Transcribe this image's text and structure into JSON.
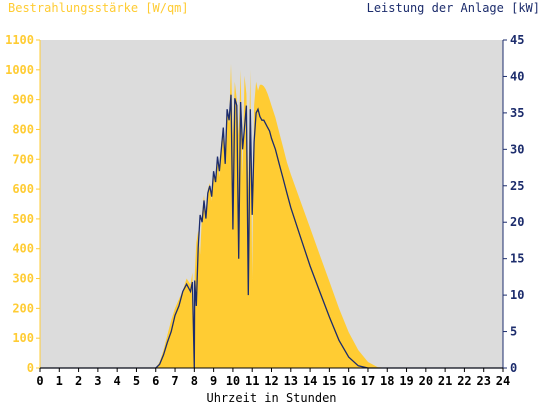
{
  "chart_data": {
    "type": "area",
    "left_axis_title": "Bestrahlungsstärke [W/qm]",
    "right_axis_title": "Leistung der Anlage [kW]",
    "xlabel": "Uhrzeit in Stunden",
    "x_ticks": [
      "0",
      "1",
      "2",
      "3",
      "4",
      "5",
      "6",
      "7",
      "8",
      "9",
      "10",
      "11",
      "12",
      "13",
      "14",
      "15",
      "16",
      "17",
      "18",
      "19",
      "20",
      "21",
      "22",
      "23",
      "24"
    ],
    "y_left_ticks": [
      "0",
      "100",
      "200",
      "300",
      "400",
      "500",
      "600",
      "700",
      "800",
      "900",
      "1000",
      "1100"
    ],
    "y_right_ticks": [
      "0",
      "5",
      "10",
      "15",
      "20",
      "25",
      "30",
      "35",
      "40",
      "45"
    ],
    "xlim": [
      0,
      24
    ],
    "ylim_left": [
      0,
      1100
    ],
    "ylim_right": [
      0,
      45
    ],
    "grid": false,
    "colors": {
      "plot_bg": "#dcdcdc",
      "irradiance": "#ffcc33",
      "power": "#1c2c6c",
      "left_axis": "#ffcc33",
      "right_axis": "#1c2c6c",
      "xlabel": "#000000"
    },
    "series": [
      {
        "axis": "left",
        "x": [
          0,
          6.0,
          6.2,
          6.4,
          6.6,
          6.8,
          7.0,
          7.2,
          7.4,
          7.6,
          7.8,
          7.9,
          8.0,
          8.02,
          8.1,
          8.2,
          8.3,
          8.4,
          8.5,
          8.6,
          8.7,
          8.8,
          8.9,
          9.0,
          9.1,
          9.2,
          9.3,
          9.4,
          9.5,
          9.6,
          9.7,
          9.8,
          9.9,
          10.0,
          10.1,
          10.2,
          10.3,
          10.4,
          10.5,
          10.6,
          10.7,
          10.8,
          10.9,
          11.0,
          11.1,
          11.2,
          11.3,
          11.4,
          11.5,
          11.6,
          11.7,
          11.8,
          11.9,
          12.0,
          12.2,
          12.4,
          12.6,
          12.8,
          13.0,
          13.5,
          14.0,
          14.5,
          15.0,
          15.5,
          16.0,
          16.5,
          17.0,
          17.5,
          18.0,
          18.3,
          18.6,
          18.8,
          24
        ],
        "values": [
          0,
          0,
          20,
          60,
          110,
          160,
          200,
          230,
          260,
          300,
          280,
          320,
          0,
          310,
          420,
          460,
          380,
          520,
          580,
          500,
          600,
          620,
          560,
          660,
          620,
          700,
          640,
          760,
          800,
          700,
          860,
          820,
          1020,
          780,
          960,
          900,
          780,
          1000,
          640,
          980,
          920,
          600,
          1000,
          300,
          880,
          960,
          930,
          950,
          950,
          945,
          935,
          920,
          900,
          880,
          840,
          790,
          740,
          690,
          650,
          560,
          470,
          380,
          290,
          200,
          120,
          60,
          20,
          3,
          0,
          0,
          0,
          0,
          0
        ],
        "name": ""
      },
      {
        "axis": "right",
        "x": [
          0,
          6.0,
          6.2,
          6.4,
          6.6,
          6.8,
          7.0,
          7.2,
          7.4,
          7.6,
          7.8,
          7.9,
          8.0,
          8.02,
          8.1,
          8.2,
          8.3,
          8.4,
          8.5,
          8.6,
          8.7,
          8.8,
          8.9,
          9.0,
          9.1,
          9.2,
          9.3,
          9.4,
          9.5,
          9.6,
          9.7,
          9.8,
          9.9,
          10.0,
          10.1,
          10.2,
          10.3,
          10.4,
          10.5,
          10.6,
          10.7,
          10.8,
          10.9,
          11.0,
          11.1,
          11.2,
          11.3,
          11.4,
          11.5,
          11.6,
          11.7,
          11.8,
          11.9,
          12.0,
          12.2,
          12.4,
          12.6,
          12.8,
          13.0,
          13.5,
          14.0,
          14.5,
          15.0,
          15.5,
          16.0,
          16.5,
          17.0,
          17.5,
          18.0,
          18.3,
          18.6,
          18.8,
          24
        ],
        "values": [
          0,
          0,
          0.5,
          1.8,
          3.5,
          5.0,
          7.2,
          8.5,
          10.5,
          11.5,
          10.5,
          11.8,
          0,
          12.0,
          8.5,
          16.5,
          21.0,
          20.0,
          23.0,
          20.5,
          24.0,
          25.0,
          23.5,
          27.0,
          25.5,
          29.0,
          27.0,
          30.0,
          33.0,
          28.0,
          35.5,
          34.0,
          37.5,
          19.0,
          37.0,
          36.0,
          15.0,
          36.5,
          30.0,
          33.0,
          36.0,
          10.0,
          35.5,
          21.0,
          31.0,
          35.0,
          35.5,
          34.5,
          34.0,
          34.0,
          33.5,
          33.0,
          32.5,
          31.5,
          30.0,
          28.0,
          26.0,
          24.0,
          22.0,
          18.0,
          14.0,
          10.5,
          7.0,
          3.8,
          1.5,
          0.3,
          0,
          0,
          0,
          0,
          0,
          0,
          0
        ],
        "name": ""
      }
    ]
  }
}
